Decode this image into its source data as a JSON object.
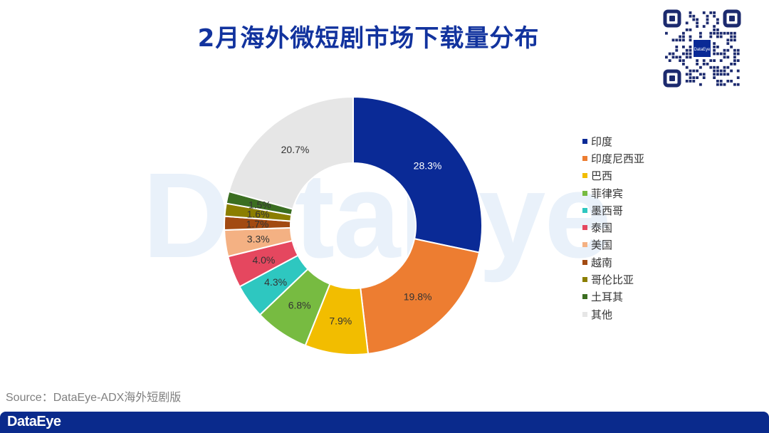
{
  "title": "2月海外微短剧市场下载量分布",
  "watermark": "DataEye",
  "source": "Source：DataEye-ADX海外短剧版",
  "footer_logo": "DataEye",
  "qr_center_text": "DataEye",
  "chart_data": {
    "type": "pie",
    "variant": "donut",
    "title": "2月海外微短剧市场下载量分布",
    "legend_position": "right",
    "categories": [
      "印度",
      "印度尼西亚",
      "巴西",
      "菲律宾",
      "墨西哥",
      "泰国",
      "美国",
      "越南",
      "哥伦比亚",
      "土耳其",
      "其他"
    ],
    "values": [
      28.3,
      19.8,
      7.9,
      6.8,
      4.3,
      4.0,
      3.3,
      1.7,
      1.6,
      1.5,
      20.7
    ],
    "labels": [
      "28.3%",
      "19.8%",
      "7.9%",
      "6.8%",
      "4.3%",
      "4.0%",
      "3.3%",
      "1.7%",
      "1.6%",
      "1.5%",
      "20.7%"
    ],
    "colors": [
      "#0a2a96",
      "#ed7d31",
      "#f2bd00",
      "#77bb41",
      "#2ec7c0",
      "#e5475f",
      "#f4b183",
      "#a24a12",
      "#8b7e00",
      "#3b6e21",
      "#e6e6e6"
    ],
    "label_colors": [
      "#ffffff",
      "#333333",
      "#333333",
      "#333333",
      "#333333",
      "#333333",
      "#333333",
      "#333333",
      "#333333",
      "#333333",
      "#333333"
    ]
  }
}
